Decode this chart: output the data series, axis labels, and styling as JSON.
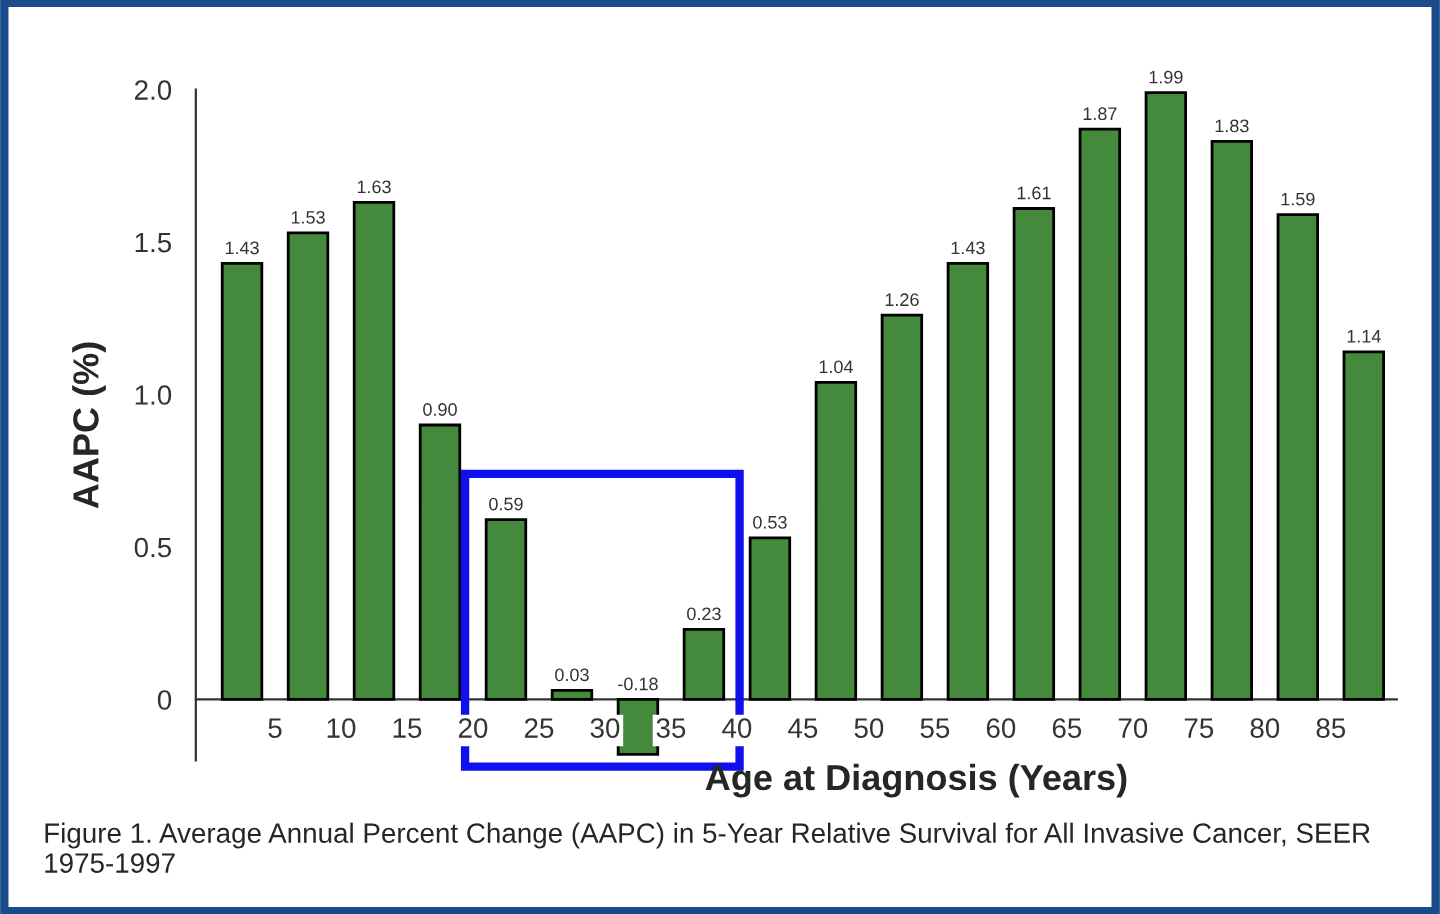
{
  "chart_data": {
    "type": "bar",
    "xlabel": "Age at Diagnosis (Years)",
    "ylabel": "AAPC (%)",
    "x": [
      2.5,
      7.5,
      12.5,
      17.5,
      22.5,
      27.5,
      32.5,
      37.5,
      42.5,
      47.5,
      52.5,
      57.5,
      62.5,
      67.5,
      72.5,
      77.5,
      82.5,
      87.5
    ],
    "values": [
      1.43,
      1.53,
      1.63,
      0.9,
      0.59,
      0.03,
      -0.18,
      0.23,
      0.53,
      1.04,
      1.26,
      1.43,
      1.61,
      1.87,
      1.99,
      1.83,
      1.59,
      1.14
    ],
    "value_labels": [
      "1.43",
      "1.53",
      "1.63",
      "0.90",
      "0.59",
      "0.03",
      "-0.18",
      "0.23",
      "0.53",
      "1.04",
      "1.26",
      "1.43",
      "1.61",
      "1.87",
      "1.99",
      "1.83",
      "1.59",
      "1.14"
    ],
    "color": "#458a3c",
    "xlim": [
      -1,
      90
    ],
    "xticks": [
      5,
      10,
      15,
      20,
      25,
      30,
      35,
      40,
      45,
      50,
      55,
      60,
      65,
      70,
      75,
      80,
      85
    ],
    "ylim": [
      -0.2,
      2.0
    ],
    "yticks": [
      0,
      0.5,
      {
        "value": 1.0,
        "label": "1.0"
      },
      1.5,
      {
        "value": 2.0,
        "label": "2.0"
      }
    ],
    "grid": false,
    "legend": false,
    "annotations": [
      "Figure 1. Average Annual Percent Change (AAPC) in 5-Year Relative Survival for All Invasive Cancer, SEER 1975-1997"
    ]
  }
}
